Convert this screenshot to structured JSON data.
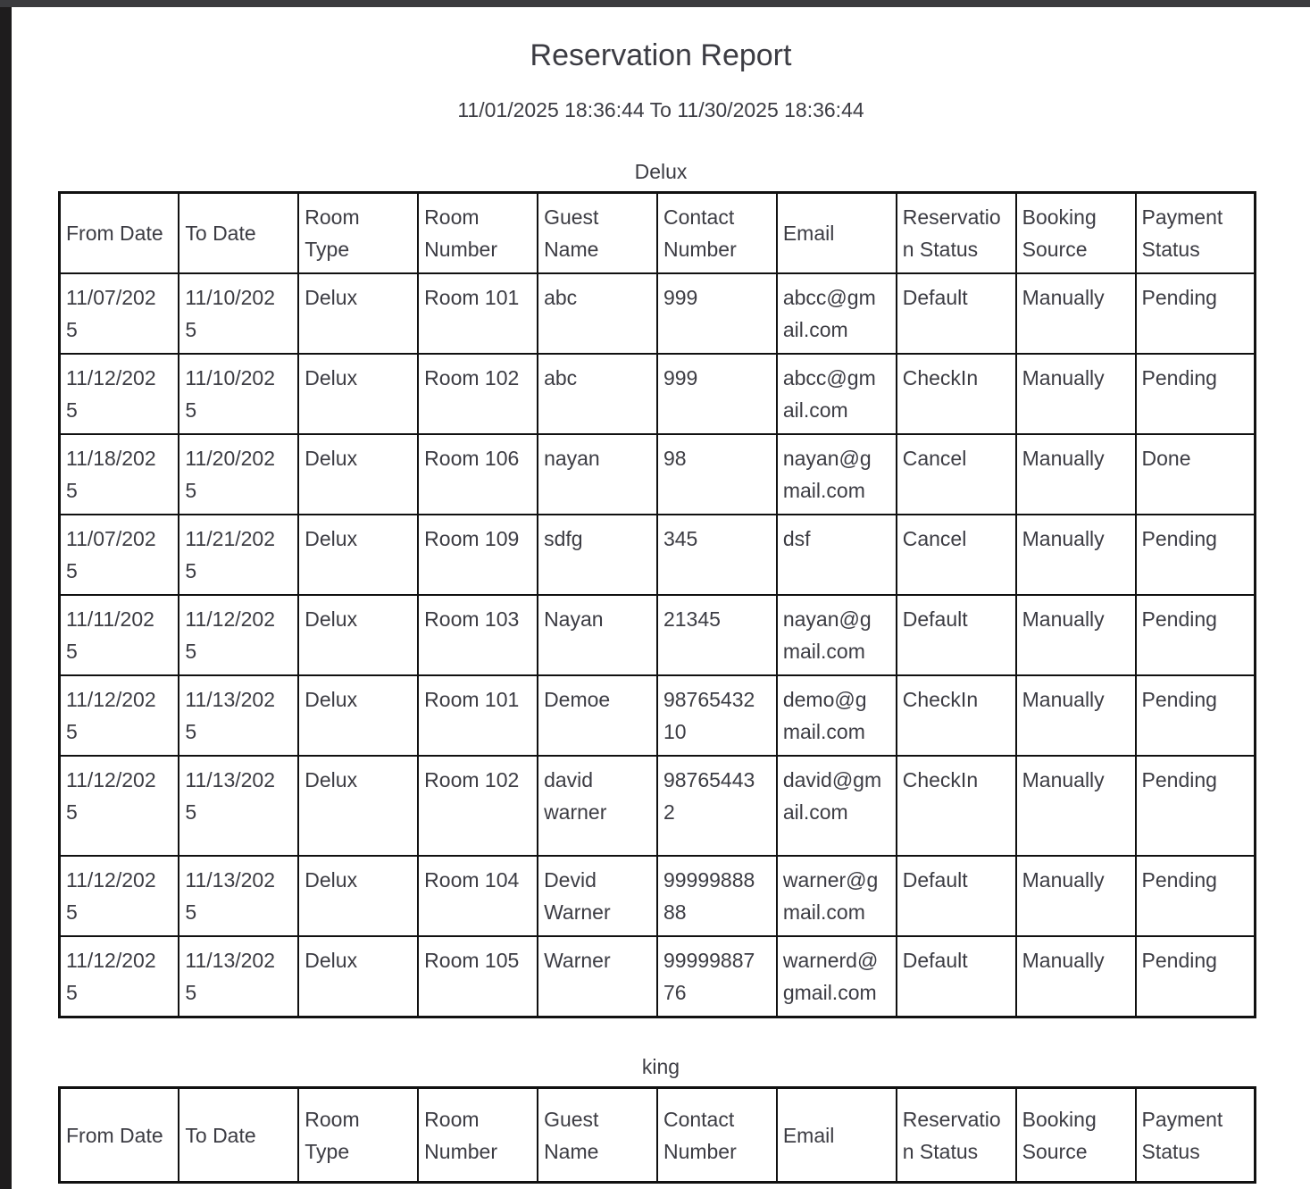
{
  "report": {
    "title": "Reservation Report",
    "date_range": "11/01/2025 18:36:44 To 11/30/2025 18:36:44"
  },
  "columns": [
    "From Date",
    "To Date",
    "Room Type",
    "Room Number",
    "Guest Name",
    "Contact Number",
    "Email",
    "Reservation Status",
    "Booking Source",
    "Payment Status"
  ],
  "sections": [
    {
      "title": "Delux",
      "rows": [
        [
          "11/07/2025",
          "11/10/2025",
          "Delux",
          "Room 101",
          "abc",
          "999",
          "abcc@gmail.com",
          "Default",
          "Manually",
          "Pending"
        ],
        [
          "11/12/2025",
          "11/10/2025",
          "Delux",
          "Room 102",
          "abc",
          "999",
          "abcc@gmail.com",
          "CheckIn",
          "Manually",
          "Pending"
        ],
        [
          "11/18/2025",
          "11/20/2025",
          "Delux",
          "Room 106",
          "nayan",
          "98",
          "nayan@gmail.com",
          "Cancel",
          "Manually",
          "Done"
        ],
        [
          "11/07/2025",
          "11/21/2025",
          "Delux",
          "Room 109",
          "sdfg",
          "345",
          "dsf",
          "Cancel",
          "Manually",
          "Pending"
        ],
        [
          "11/11/2025",
          "11/12/2025",
          "Delux",
          "Room 103",
          "Nayan",
          "21345",
          "nayan@gmail.com",
          "Default",
          "Manually",
          "Pending"
        ],
        [
          "11/12/2025",
          "11/13/2025",
          "Delux",
          "Room 101",
          "Demoe",
          "9876543210",
          "demo@gmail.com",
          "CheckIn",
          "Manually",
          "Pending"
        ],
        [
          "11/12/2025",
          "11/13/2025",
          "Delux",
          "Room 102",
          "david warner",
          "987654432",
          "david@gmail.com",
          "CheckIn",
          "Manually",
          "Pending"
        ],
        [
          "11/12/2025",
          "11/13/2025",
          "Delux",
          "Room 104",
          "Devid Warner",
          "9999988888",
          "warner@gmail.com",
          "Default",
          "Manually",
          "Pending"
        ],
        [
          "11/12/2025",
          "11/13/2025",
          "Delux",
          "Room 105",
          "Warner",
          "9999988776",
          "warnerd@gmail.com",
          "Default",
          "Manually",
          "Pending"
        ]
      ]
    },
    {
      "title": "king",
      "rows": []
    }
  ]
}
